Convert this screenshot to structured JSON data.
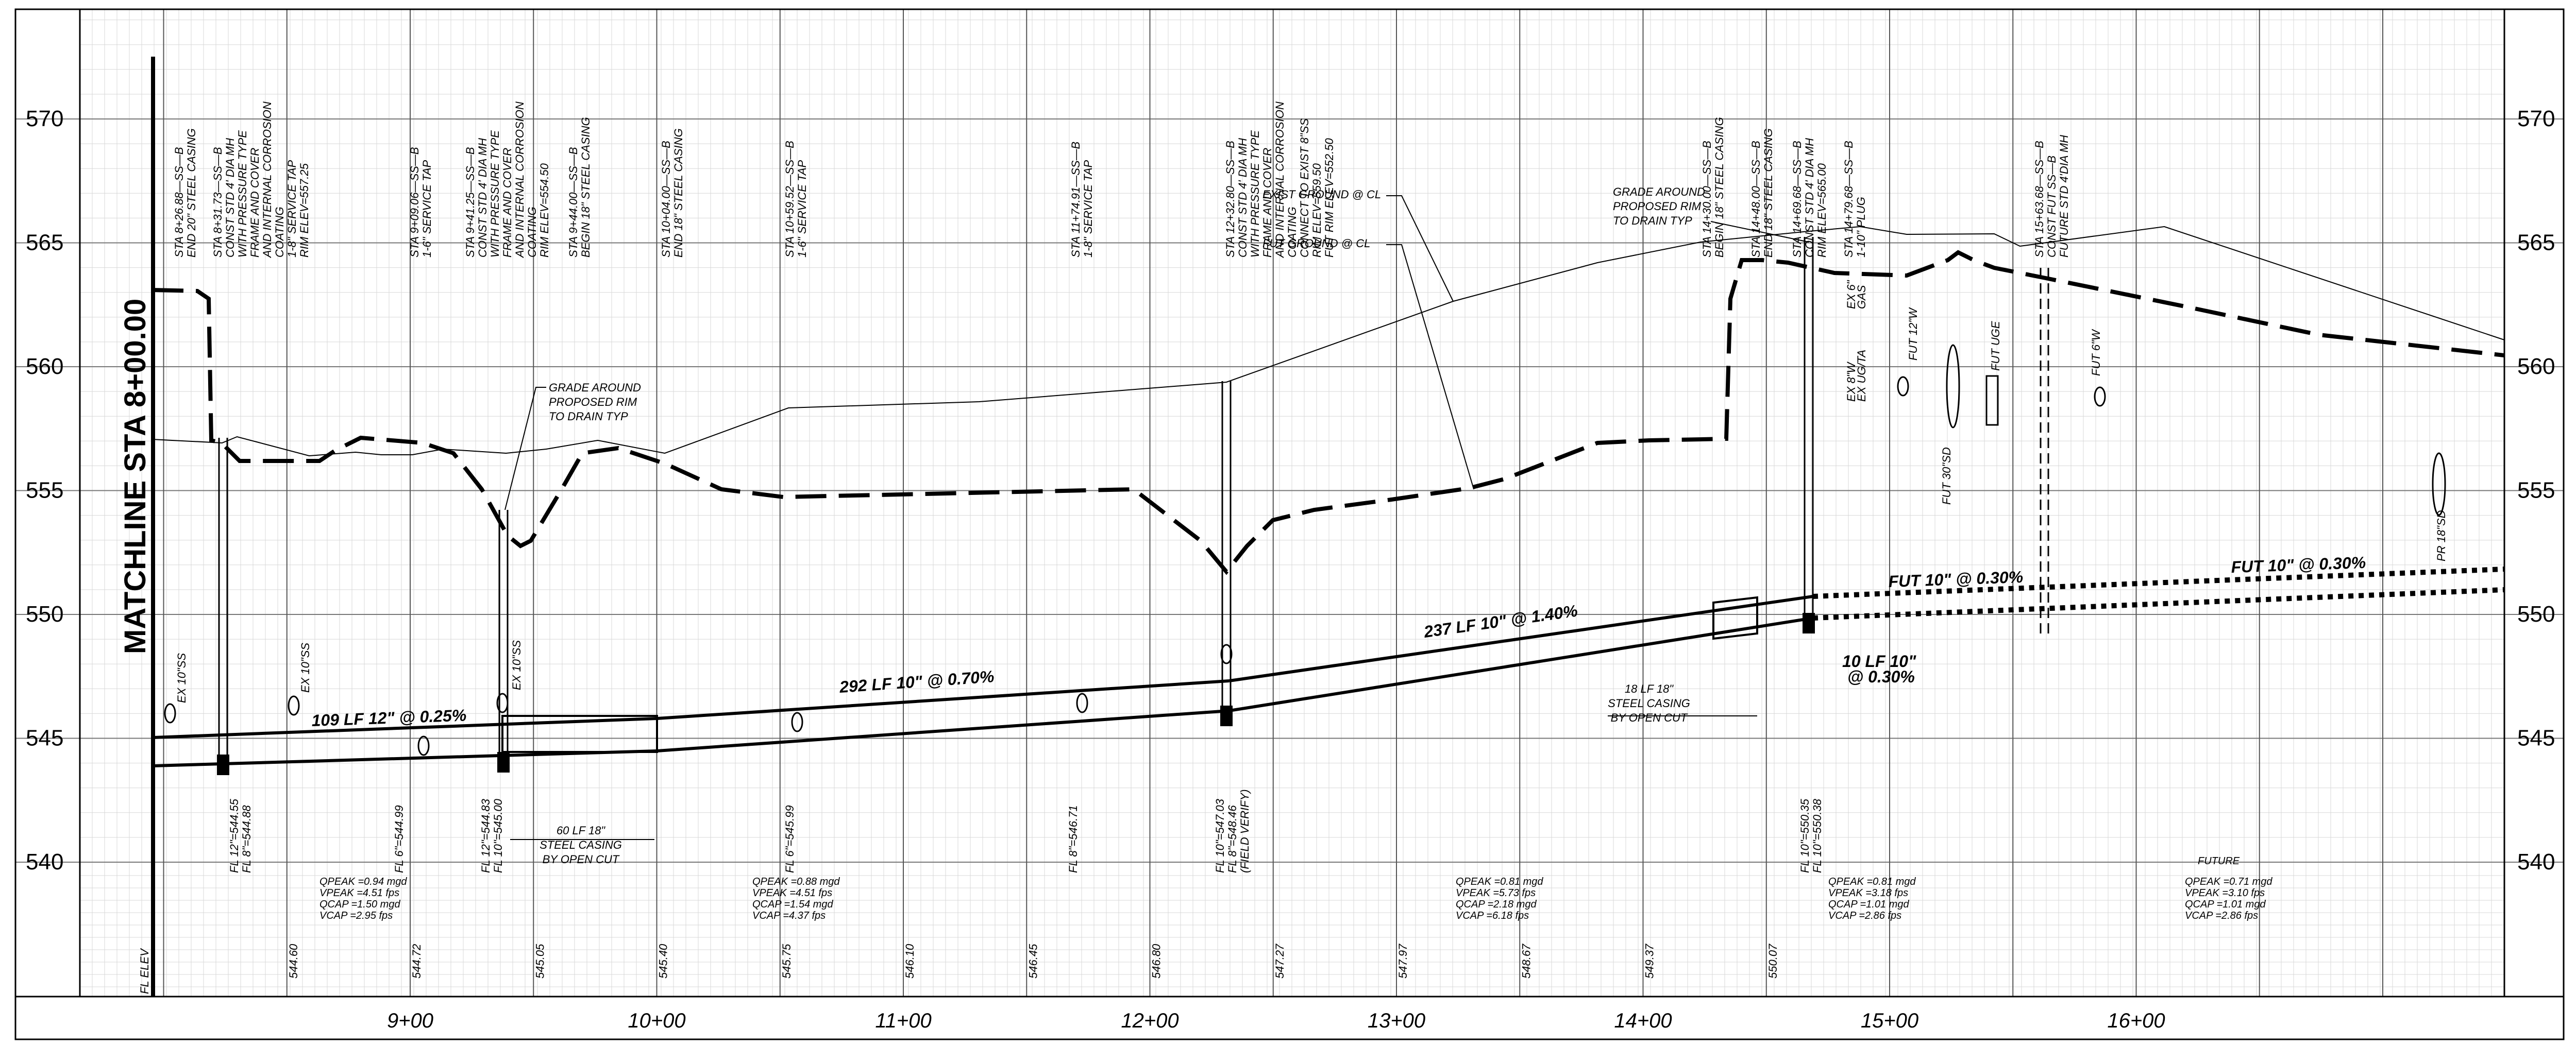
{
  "elevations": [
    "570",
    "565",
    "560",
    "555",
    "550",
    "545",
    "540"
  ],
  "stations": [
    "9+00",
    "10+00",
    "11+00",
    "12+00",
    "13+00",
    "14+00",
    "15+00",
    "16+00"
  ],
  "matchline": "MATCHLINE STA 8+00.00",
  "fl_elev_label": "FL ELEV",
  "fl_elevations": [
    "544.60",
    "544.72",
    "545.05",
    "545.40",
    "545.75",
    "546.10",
    "546.45",
    "546.80",
    "547.27",
    "547.97",
    "548.67",
    "549.37",
    "550.07"
  ],
  "notes": [
    [
      "STA 8+26.88—SS—B",
      "END 20\" STEEL CASING"
    ],
    [
      "STA 8+31.73—SS—B",
      "CONST STD 4' DIA MH",
      "WITH PRESSURE TYPE",
      "FRAME AND COVER",
      "AND INTERNAL CORROSION",
      "COATING",
      "1-8\" SERVICE TAP",
      "RIM ELEV=557.25"
    ],
    [
      "STA 9+09.06—SS—B",
      "1-6\" SERVICE TAP"
    ],
    [
      "STA 9+41.25—SS—B",
      "CONST STD 4' DIA MH",
      "WITH PRESSURE TYPE",
      "FRAME AND COVER",
      "AND INTERNAL CORROSION",
      "COATING",
      "RIM ELEV=554.50"
    ],
    [
      "STA 9+44.00—SS—B",
      "BEGIN 18\" STEEL CASING"
    ],
    [
      "STA 10+04.00—SS—B",
      "END 18\" STEEL CASING"
    ],
    [
      "STA 10+59.52—SS—B",
      "1-6\" SERVICE TAP"
    ],
    [
      "STA 11+74.91—SS—B",
      "1-8\" SERVICE TAP"
    ],
    [
      "STA 12+32.80—SS—B",
      "CONST STD 4' DIA MH",
      "WITH PRESSURE TYPE",
      "FRAME AND COVER",
      "AND INTERNAL CORROSION",
      "COATING",
      "CONNECT TO EXIST 8\"SS",
      "RIM ELEV=559.50",
      "FUT RIM ELEV=552.50"
    ],
    [
      "STA 14+30.00—SS—B",
      "BEGIN 18\" STEEL CASING"
    ],
    [
      "STA 14+48.00—SS—B",
      "END 18\" STEEL CASING"
    ],
    [
      "STA 14+69.68—SS—B",
      "CONST STD 4' DIA MH",
      "RIM ELEV=565.00"
    ],
    [
      "STA 14+79.68—SS—B",
      "1-10\" PLUG"
    ],
    [
      "STA 15+63.68—SS—B",
      "CONST FUT SS—B",
      "FUTURE STD 4'DIA MH"
    ]
  ],
  "fl_labels": [
    [
      "FL 12\"=544.55",
      "FL 8\"=544.88"
    ],
    [
      "FL 6\"=544.99"
    ],
    [
      "FL 12\"=544.83",
      "FL 10\"=545.00"
    ],
    [
      "FL 6\"=545.99"
    ],
    [
      "FL 8\"=546.71"
    ],
    [
      "FL 10\"=547.03",
      "FL 8\"=548.46",
      "(FIELD VERIFY)"
    ],
    [
      "FL 10\"=550.35",
      "FL 10\"=550.38"
    ]
  ],
  "callouts": {
    "exist_ground": "EXIST GROUND @ CL",
    "fut_ground": "FUT GROUND @ CL",
    "grade_left": [
      "GRADE AROUND",
      "PROPOSED RIM",
      "TO DRAIN TYP"
    ],
    "grade_right": [
      "GRADE AROUND",
      "PROPOSED RIM",
      "TO DRAIN TYP"
    ],
    "casing_left": [
      "60 LF 18\"",
      "STEEL CASING",
      "BY OPEN CUT"
    ],
    "casing_right": [
      "18 LF 18\"",
      "STEEL CASING",
      "BY OPEN CUT"
    ]
  },
  "pipe_labels": [
    "109 LF 12\" @ 0.25%",
    "292 LF 10\" @ 0.70%",
    "237 LF 10\" @ 1.40%",
    "FUT 10\" @ 0.30%",
    "FUT 10\" @ 0.30%",
    "10 LF 10\"",
    "@ 0.30%"
  ],
  "utility_labels": [
    "EX 10\"SS",
    "EX 10\"SS",
    "EX 10\"SS",
    "EX 8\"W",
    "EX UG/TA",
    "EX 6\"",
    "GAS",
    "FUT 12\"W",
    "FUT UGE",
    "FUT 6\"W",
    "FUT 30\"SD",
    "PR 18\"SD"
  ],
  "future_label": "FUTURE",
  "hydraulics": [
    [
      "QPEAK =0.94 mgd",
      "VPEAK =4.51 fps",
      "QCAP =1.50 mgd",
      "VCAP =2.95 fps"
    ],
    [
      "QPEAK =0.88 mgd",
      "VPEAK =4.51 fps",
      "QCAP =1.54 mgd",
      "VCAP =4.37 fps"
    ],
    [
      "QPEAK =0.81 mgd",
      "VPEAK =5.73 fps",
      "QCAP =2.18 mgd",
      "VCAP =6.18 fps"
    ],
    [
      "QPEAK =0.81 mgd",
      "VPEAK =3.18 fps",
      "QCAP =1.01 mgd",
      "VCAP =2.86 fps"
    ],
    [
      "QPEAK =0.71 mgd",
      "VPEAK =3.10 fps",
      "QCAP =1.01 mgd",
      "VCAP =2.86 fps"
    ]
  ]
}
